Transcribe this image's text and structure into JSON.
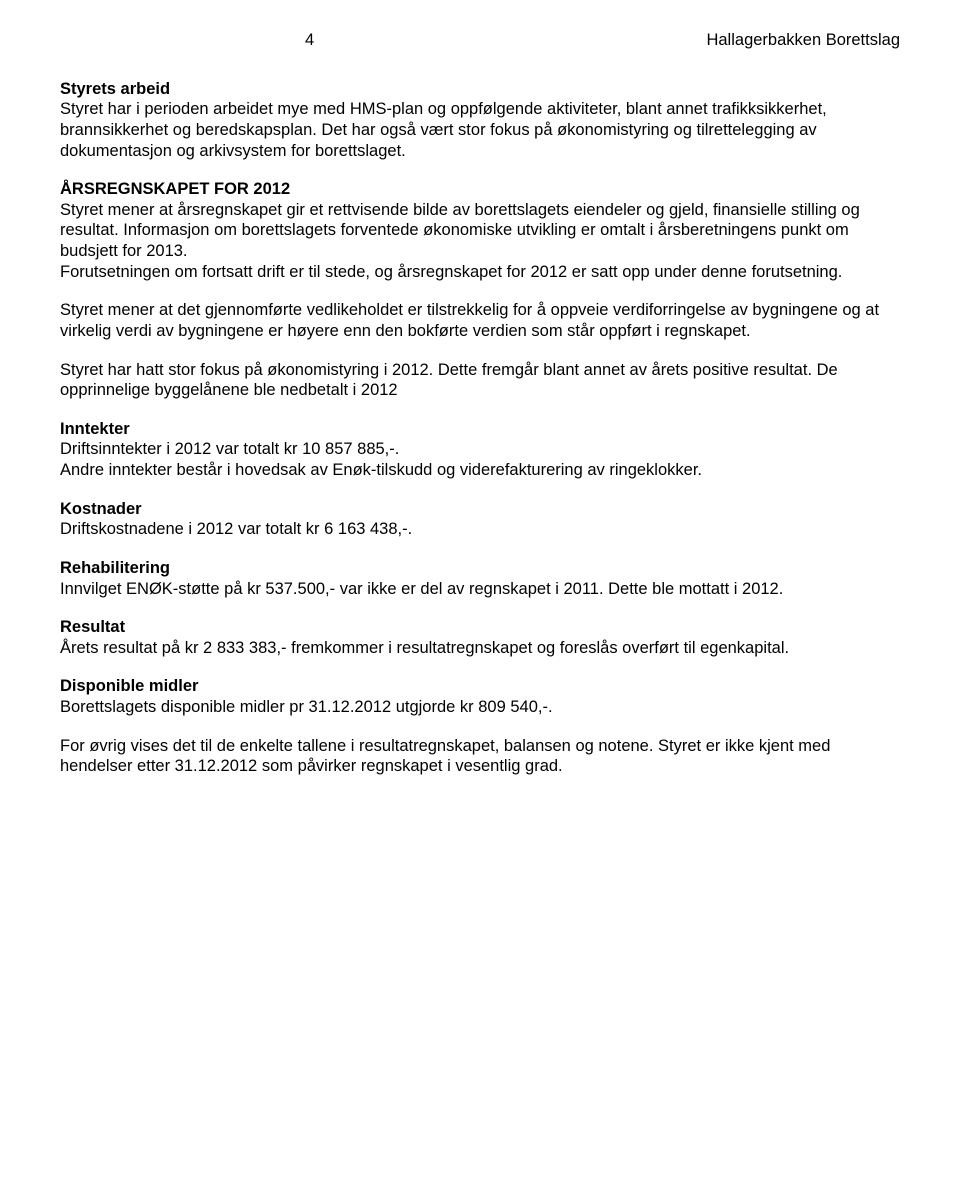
{
  "header": {
    "page_number": "4",
    "doc_title": "Hallagerbakken Borettslag"
  },
  "p1": {
    "heading": "Styrets arbeid",
    "body": "Styret har i perioden arbeidet mye med HMS-plan og oppfølgende aktiviteter, blant annet trafikksikkerhet, brannsikkerhet og beredskapsplan. Det har også vært stor fokus på økonomistyring og tilrettelegging av dokumentasjon og arkivsystem for borettslaget."
  },
  "p2": {
    "heading": "ÅRSREGNSKAPET FOR 2012",
    "body1": "Styret mener at årsregnskapet gir et rettvisende bilde av borettslagets eiendeler og gjeld, finansielle stilling og resultat. Informasjon om borettslagets forventede økonomiske utvikling er omtalt i årsberetningens punkt om budsjett for 2013.",
    "body2": "Forutsetningen om fortsatt drift er til stede, og årsregnskapet for 2012 er satt opp under denne forutsetning."
  },
  "p3": "Styret mener at det gjennomførte vedlikeholdet er tilstrekkelig for å oppveie verdiforringelse av bygningene og at virkelig verdi av bygningene er høyere enn den bokførte verdien som står oppført i regnskapet.",
  "p4": "Styret har hatt stor fokus på økonomistyring i 2012. Dette fremgår blant annet av årets positive resultat. De opprinnelige byggelånene ble nedbetalt i 2012",
  "inntekter": {
    "heading": "Inntekter",
    "line1": "Driftsinntekter i 2012 var totalt kr 10 857 885,-.",
    "line2": "Andre inntekter består i hovedsak av Enøk-tilskudd og viderefakturering av ringeklokker."
  },
  "kostnader": {
    "heading": "Kostnader",
    "line1": "Driftskostnadene i 2012 var totalt kr 6 163 438,-."
  },
  "rehab": {
    "heading": "Rehabilitering",
    "line1": "Innvilget ENØK-støtte på kr 537.500,- var ikke er del av regnskapet i 2011. Dette ble mottatt i 2012."
  },
  "resultat": {
    "heading": "Resultat",
    "line1": "Årets resultat på kr 2 833 383,- fremkommer i resultatregnskapet og foreslås overført til egenkapital."
  },
  "disp": {
    "heading": "Disponible midler",
    "line1": "Borettslagets disponible midler pr 31.12.2012 utgjorde kr 809 540,-."
  },
  "footer": "For øvrig vises det til de enkelte tallene i resultatregnskapet, balansen og notene. Styret er ikke kjent med hendelser etter 31.12.2012 som påvirker regnskapet i vesentlig grad."
}
